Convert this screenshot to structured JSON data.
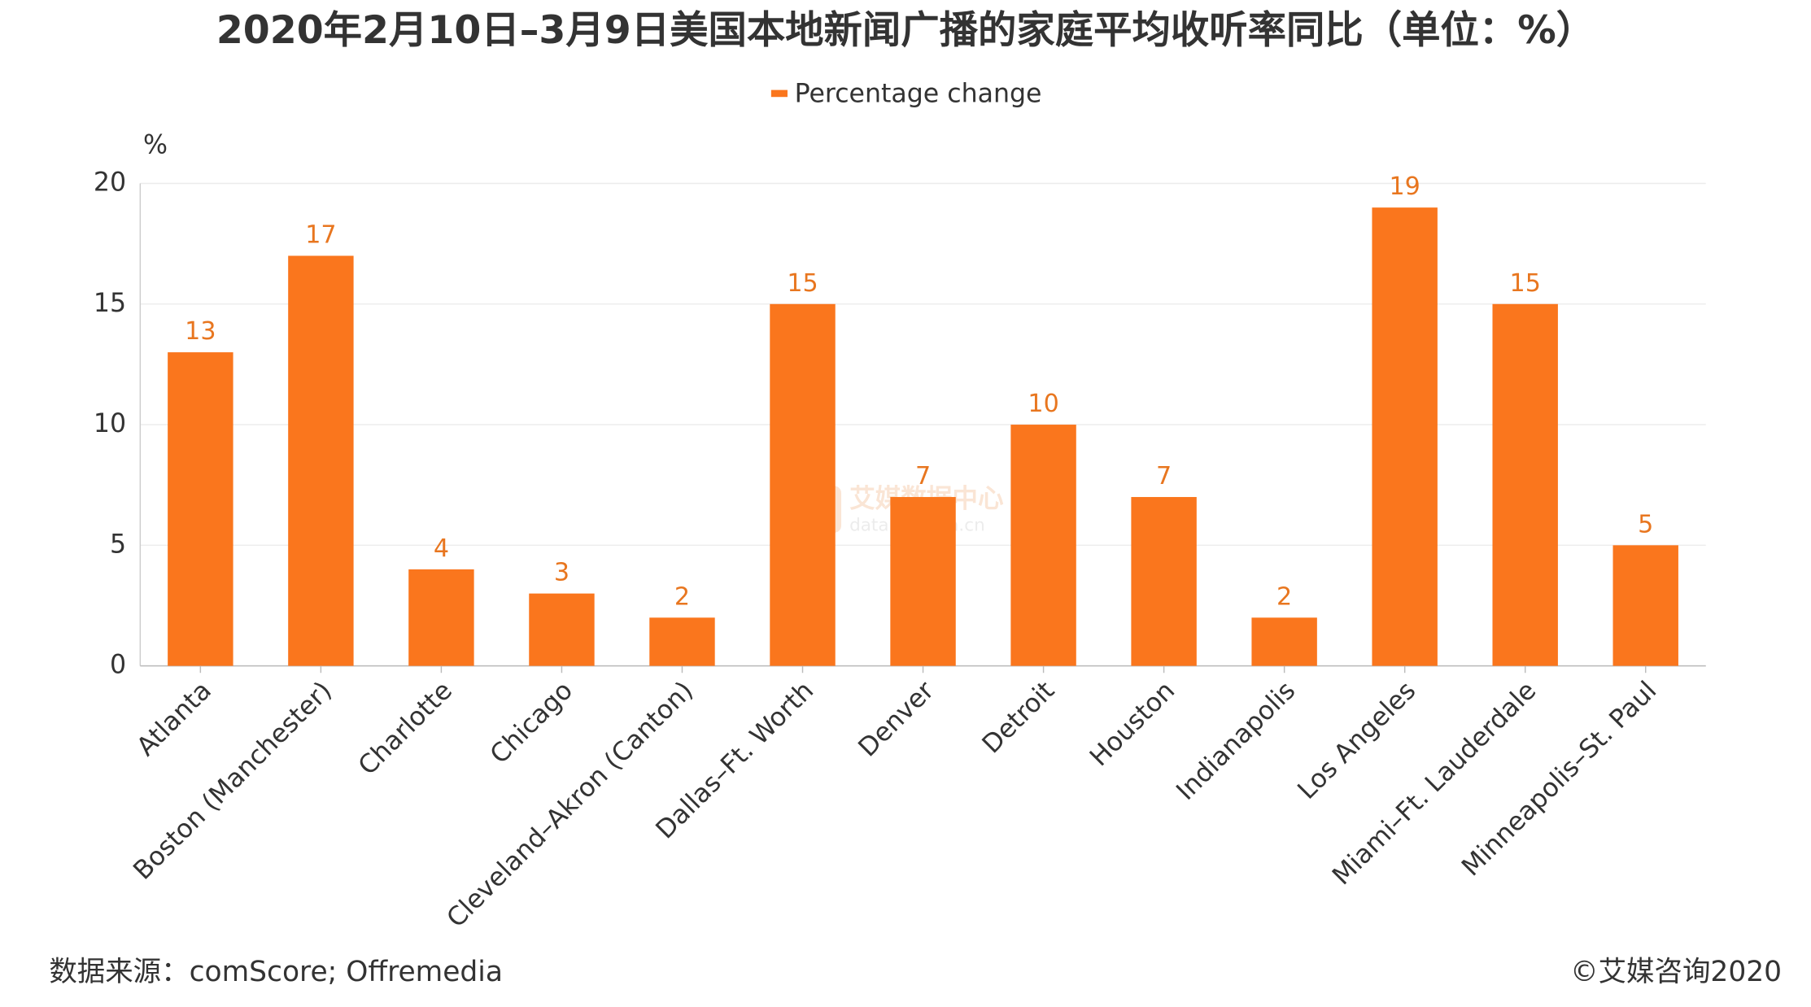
{
  "chart_data": {
    "type": "bar",
    "title": "2020年2月10日–3月9日美国本地新闻广播的家庭平均收听率同比（单位：%）",
    "y_axis_label": "%",
    "categories": [
      "Atlanta",
      "Boston (Manchester)",
      "Charlotte",
      "Chicago",
      "Cleveland–Akron (Canton)",
      "Dallas–Ft. Worth",
      "Denver",
      "Detroit",
      "Houston",
      "Indianapolis",
      "Los Angeles",
      "Miami–Ft. Lauderdale",
      "Minneapolis–St. Paul"
    ],
    "series": [
      {
        "name": "Percentage change",
        "color": "#fa761d",
        "values": [
          13,
          17,
          4,
          3,
          2,
          15,
          7,
          10,
          7,
          2,
          19,
          15,
          5
        ]
      }
    ],
    "ylim": [
      0,
      20
    ],
    "yticks": [
      0,
      5,
      10,
      15,
      20
    ],
    "grid": true,
    "legend": "top",
    "watermark": [
      "艾媒数据中心",
      "data.iimedia.cn"
    ],
    "source": "数据来源：comScore; Offremedia",
    "copyright": "©艾媒咨询2020"
  }
}
